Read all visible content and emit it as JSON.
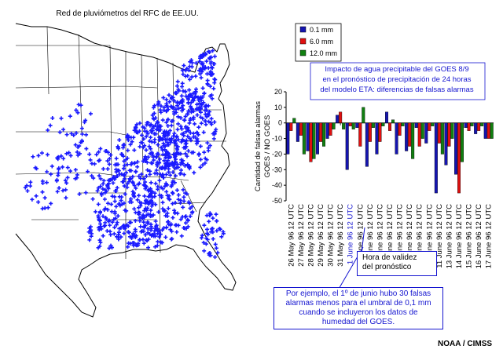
{
  "map": {
    "title": "Red de pluviómetros del RFC de EE.UU.",
    "marker_color": "#1a1aff"
  },
  "chart_data": {
    "type": "bar",
    "title": "Impacto de agua precipitable del GOES 8/9 en el pronóstico de precipitación de 24 horas del modelo ETA: diferencias de falsas alarmas",
    "title_lines": [
      "Impacto de agua precipitable del GOES 8/9",
      "en el pronóstico de precipitación de 24 horas",
      "del modelo ETA: diferencias de falsas alarmas"
    ],
    "ylabel_lines": [
      "Cantidad de falsas alarmas",
      "GOES / NO GOES"
    ],
    "ylim": [
      -50,
      20
    ],
    "yticks": [
      20,
      10,
      0,
      -10,
      -20,
      -30,
      -40,
      -50
    ],
    "grid": false,
    "legend_position": "top-left",
    "categories": [
      "26 May 96 12 UTC",
      "27 May 96 12 UTC",
      "28 May 96 12 UTC",
      "29 May 96 12 UTC",
      "30 May 96 12 UTC",
      "31 May 96 12 UTC",
      "1 June 96 12 UTC",
      "2 June 96 12 UTC",
      "3 June 96 12 UTC",
      "4 June 96 12 UTC",
      "5 June 96 12 UTC",
      "7 June 96 12 UTC",
      "8 June 96 12 UTC",
      "9 June 96 12 UTC",
      "10 June 96 12 UTC",
      "11 June 96 12 UTC",
      "13 June 96 12 UTC",
      "14 June 96 12 UTC",
      "15 June 96 12 UTC",
      "16 June 96 12 UTC",
      "17 June 96 12 UTC"
    ],
    "highlight_category": "1 June 96 12 UTC",
    "series": [
      {
        "name": "0.1 mm",
        "color": "#1515b0",
        "values": [
          -20,
          -12,
          -18,
          -20,
          -10,
          5,
          -30,
          -3,
          -28,
          -20,
          7,
          -20,
          -18,
          -3,
          -13,
          -45,
          -27,
          -33,
          -3,
          -7,
          -10
        ]
      },
      {
        "name": "6.0 mm",
        "color": "#e01010",
        "values": [
          -5,
          -8,
          -25,
          -12,
          -8,
          7,
          -2,
          -15,
          -12,
          -12,
          -5,
          -8,
          -15,
          -15,
          -5,
          -13,
          -15,
          -45,
          -5,
          -5,
          -10
        ]
      },
      {
        "name": "12.0 mm",
        "color": "#108010",
        "values": [
          3,
          -20,
          -23,
          -15,
          -4,
          -4,
          -4,
          10,
          -3,
          -2,
          2,
          -2,
          -23,
          -10,
          -2,
          -20,
          -10,
          -25,
          -2,
          -2,
          -10
        ]
      }
    ]
  },
  "annotations": {
    "validity_label": "Hora de validez del pronóstico",
    "validity_lines": [
      "Hora de validez",
      "del pronóstico"
    ],
    "example_lines": [
      "Por ejemplo, el 1º de junio hubo 30 falsas",
      "alarmas menos para el umbral de 0,1 mm",
      "cuando se incluyeron los datos de",
      "humedad del GOES."
    ],
    "credit": "NOAA / CIMSS"
  }
}
